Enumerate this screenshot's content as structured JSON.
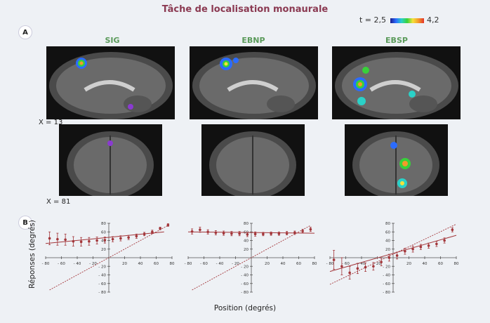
{
  "title": "Tâche de localisation monaurale",
  "t_scale": {
    "min_label": "t = 2,5",
    "max_label": "4,2"
  },
  "panels": {
    "a": "A",
    "b": "B"
  },
  "conditions": [
    "SIG",
    "EBNP",
    "EBSP"
  ],
  "coords": {
    "sagittal": "X = 13",
    "coronal": "X = 81"
  },
  "colors": {
    "title": "#8b3a52",
    "condition": "#5a9a5a",
    "data": "#a3363a"
  },
  "chart_data": [
    {
      "type": "scatter",
      "group": "SIG",
      "xlabel": "Position (degrés)",
      "ylabel": "Réponses (degrés)",
      "xlim": [
        -80,
        80
      ],
      "ylim": [
        -80,
        80
      ],
      "x_ticks": [
        "- 80",
        "- 60",
        "- 40",
        "- 20",
        "20",
        "40",
        "60",
        "80"
      ],
      "y_ticks": [
        "80",
        "60",
        "40",
        "20",
        "- 20",
        "- 40",
        "- 60",
        "- 80"
      ],
      "x": [
        -75,
        -65,
        -55,
        -45,
        -35,
        -25,
        -15,
        -5,
        5,
        15,
        25,
        35,
        45,
        55,
        65,
        75
      ],
      "y": [
        45,
        43,
        42,
        38,
        37,
        38,
        40,
        41,
        43,
        45,
        47,
        50,
        55,
        60,
        68,
        76
      ],
      "err": [
        15,
        14,
        13,
        11,
        10,
        9,
        8,
        7,
        6,
        6,
        5,
        5,
        4,
        4,
        3,
        3
      ],
      "fit": [
        [
          -80,
          33
        ],
        [
          70,
          60
        ]
      ],
      "identity": [
        [
          -75,
          -75
        ],
        [
          75,
          75
        ]
      ]
    },
    {
      "type": "scatter",
      "group": "EBNP",
      "xlim": [
        -80,
        80
      ],
      "ylim": [
        -80,
        80
      ],
      "x_ticks": [
        "- 80",
        "- 60",
        "- 40",
        "- 20",
        "20",
        "40",
        "60",
        "80"
      ],
      "y_ticks": [
        "80",
        "60",
        "40",
        "20",
        "- 20",
        "- 40",
        "- 60",
        "- 80"
      ],
      "x": [
        -75,
        -65,
        -55,
        -45,
        -35,
        -25,
        -15,
        -5,
        5,
        15,
        25,
        35,
        45,
        55,
        65,
        75
      ],
      "y": [
        61,
        65,
        60,
        58,
        57,
        56,
        56,
        54,
        55,
        55,
        56,
        56,
        57,
        58,
        62,
        66
      ],
      "err": [
        6,
        6,
        5,
        5,
        5,
        5,
        5,
        5,
        5,
        4,
        4,
        4,
        4,
        4,
        4,
        5
      ],
      "fit": [
        [
          -80,
          60
        ],
        [
          80,
          57
        ]
      ],
      "identity": [
        [
          -75,
          -75
        ],
        [
          75,
          75
        ]
      ]
    },
    {
      "type": "scatter",
      "group": "EBSP",
      "xlim": [
        -80,
        80
      ],
      "ylim": [
        -80,
        80
      ],
      "x_ticks": [
        "- 80",
        "- 60",
        "- 40",
        "- 20",
        "20",
        "40",
        "60",
        "80"
      ],
      "y_ticks": [
        "80",
        "60",
        "40",
        "20",
        "- 20",
        "- 40",
        "- 60",
        "- 80"
      ],
      "x": [
        -75,
        -65,
        -55,
        -45,
        -35,
        -25,
        -15,
        -5,
        5,
        15,
        25,
        35,
        45,
        55,
        65,
        75
      ],
      "y": [
        -5,
        -20,
        -35,
        -25,
        -22,
        -20,
        -10,
        0,
        5,
        15,
        20,
        25,
        28,
        32,
        40,
        65
      ],
      "err": [
        22,
        20,
        15,
        12,
        10,
        9,
        9,
        8,
        8,
        7,
        7,
        6,
        6,
        6,
        6,
        5
      ],
      "fit": [
        [
          -80,
          -32
        ],
        [
          80,
          52
        ]
      ],
      "identity": [
        [
          -80,
          -62
        ],
        [
          80,
          78
        ]
      ]
    }
  ]
}
